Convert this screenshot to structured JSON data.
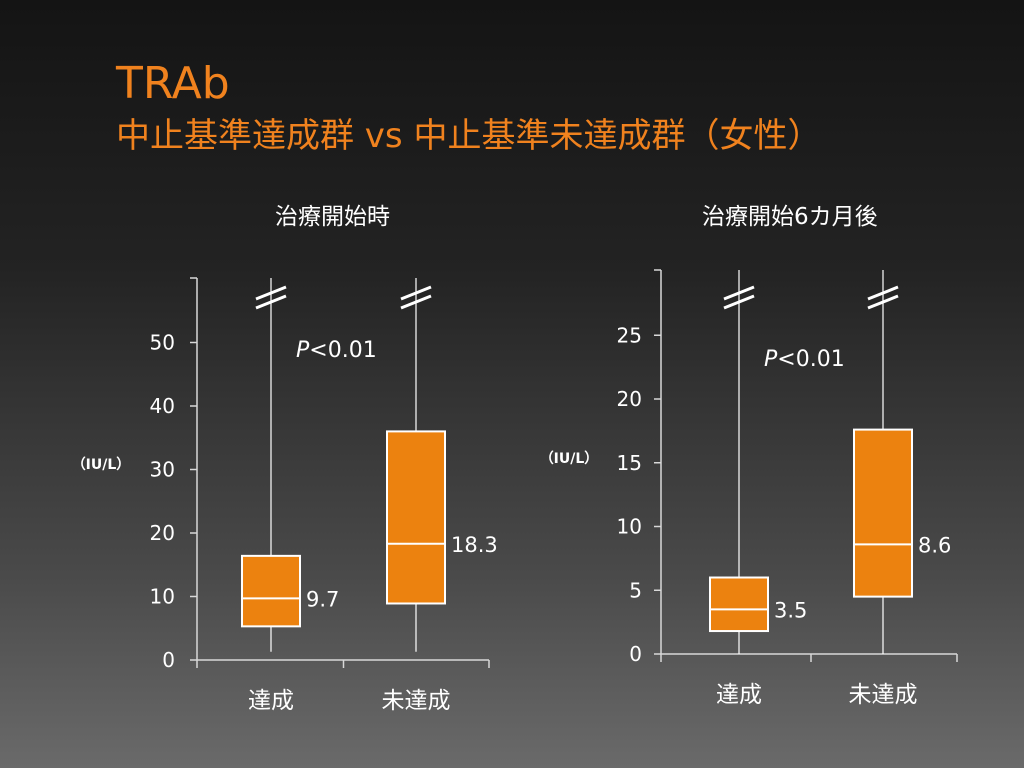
{
  "slide": {
    "title": "TRAb",
    "subtitle": "中止基準達成群 vs 中止基準未達成群（女性）"
  },
  "chart_data": [
    {
      "type": "box",
      "title": "治療開始時",
      "ylabel": "（IU/L）",
      "ylim": [
        0,
        60
      ],
      "yticks": [
        0,
        10,
        20,
        30,
        40,
        50
      ],
      "axis_break": true,
      "annotation": {
        "p_symbol": "P",
        "p_rest": "<0.01"
      },
      "categories": [
        "達成",
        "未達成"
      ],
      "boxes": [
        {
          "category": "達成",
          "whisker_low": 1.3,
          "q1": 5.3,
          "median": 9.7,
          "q3": 16.4,
          "median_label": "9.7"
        },
        {
          "category": "未達成",
          "whisker_low": 1.3,
          "q1": 8.9,
          "median": 18.3,
          "q3": 36.0,
          "median_label": "18.3"
        }
      ]
    },
    {
      "type": "box",
      "title": "治療開始6カ月後",
      "ylabel": "（IU/L）",
      "ylim": [
        0,
        30
      ],
      "yticks": [
        0,
        5,
        10,
        15,
        20,
        25
      ],
      "axis_break": true,
      "annotation": {
        "p_symbol": "P",
        "p_rest": "<0.01"
      },
      "categories": [
        "達成",
        "未達成"
      ],
      "boxes": [
        {
          "category": "達成",
          "whisker_low": 0,
          "q1": 1.8,
          "median": 3.5,
          "q3": 6.0,
          "median_label": "3.5"
        },
        {
          "category": "未達成",
          "whisker_low": 0,
          "q1": 4.5,
          "median": 8.6,
          "q3": 17.6,
          "median_label": "8.6"
        }
      ]
    }
  ],
  "colors": {
    "title": "#F0821E",
    "box_fill": "#EC820F",
    "box_stroke": "#ffffff",
    "axis": "#d8d8d8",
    "text": "#ffffff"
  }
}
